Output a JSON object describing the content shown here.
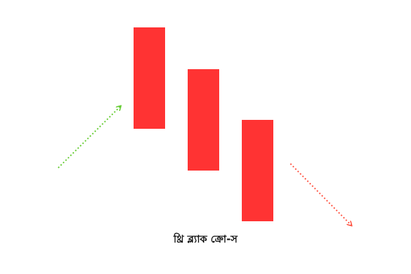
{
  "caption": "থ্রি ব্ল্যাক ক্রো-স",
  "colors": {
    "candle": "#ff3333",
    "arrow_up": "#66cc33",
    "arrow_down": "#ff5544",
    "background": "#ffffff"
  },
  "candles_count": 3,
  "arrows": [
    {
      "name": "uptrend-arrow",
      "direction": "up",
      "style": "dotted"
    },
    {
      "name": "downtrend-arrow",
      "direction": "down",
      "style": "dotted"
    }
  ]
}
